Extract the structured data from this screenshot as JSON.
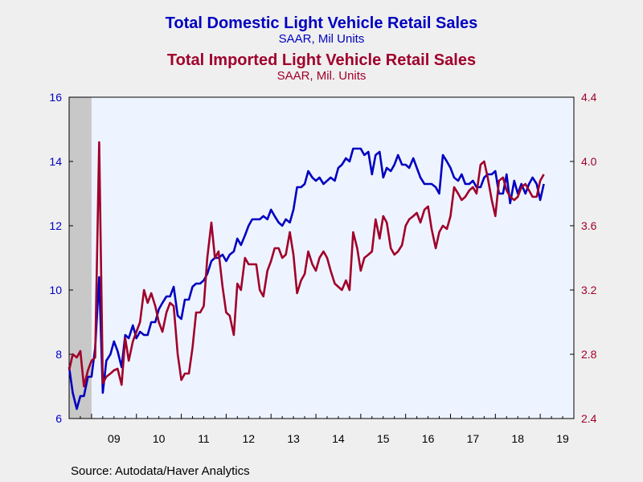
{
  "colors": {
    "domestic": "#0000c0",
    "imported": "#a0002a",
    "plot_bg": "#eef4ff",
    "recession": "#c8c8c8"
  },
  "header": {
    "title_domestic": "Total Domestic Light Vehicle Retail Sales",
    "subtitle_domestic": "SAAR, Mil Units",
    "title_imported": "Total Imported Light Vehicle Retail Sales",
    "subtitle_imported": "SAAR, Mil. Units"
  },
  "source": "Source:  Autodata/Haver Analytics",
  "chart_data": {
    "type": "line",
    "title": "Total Domestic Light Vehicle Retail Sales / Total Imported Light Vehicle Retail Sales",
    "x_unit": "year (decimal)",
    "xlim": [
      2008.5,
      2019.75
    ],
    "x_tick_labels": [
      "09",
      "10",
      "11",
      "12",
      "13",
      "14",
      "15",
      "16",
      "17",
      "18",
      "19"
    ],
    "recession_band": [
      2008.5,
      2009.0
    ],
    "y_left": {
      "lim": [
        6,
        16
      ],
      "ticks": [
        "6",
        "8",
        "10",
        "12",
        "14",
        "16"
      ]
    },
    "y_right": {
      "lim": [
        2.4,
        4.4
      ],
      "ticks": [
        "2.4",
        "2.8",
        "3.2",
        "3.6",
        "4.0",
        "4.4"
      ]
    },
    "grid": false,
    "series": [
      {
        "name": "Total Domestic Light Vehicle Retail Sales",
        "axis": "left",
        "points": [
          [
            2008.5,
            7.6
          ],
          [
            2008.58,
            6.8
          ],
          [
            2008.67,
            6.3
          ],
          [
            2008.75,
            6.7
          ],
          [
            2008.83,
            6.7
          ],
          [
            2008.92,
            7.3
          ],
          [
            2009.0,
            7.3
          ],
          [
            2009.08,
            8.2
          ],
          [
            2009.17,
            10.4
          ],
          [
            2009.25,
            6.8
          ],
          [
            2009.33,
            7.8
          ],
          [
            2009.42,
            8.0
          ],
          [
            2009.5,
            8.4
          ],
          [
            2009.58,
            8.1
          ],
          [
            2009.67,
            7.6
          ],
          [
            2009.75,
            8.6
          ],
          [
            2009.83,
            8.5
          ],
          [
            2009.92,
            8.9
          ],
          [
            2010.0,
            8.5
          ],
          [
            2010.08,
            8.7
          ],
          [
            2010.17,
            8.6
          ],
          [
            2010.25,
            8.6
          ],
          [
            2010.33,
            9.0
          ],
          [
            2010.42,
            9.0
          ],
          [
            2010.5,
            9.4
          ],
          [
            2010.58,
            9.6
          ],
          [
            2010.67,
            9.8
          ],
          [
            2010.75,
            9.8
          ],
          [
            2010.83,
            10.1
          ],
          [
            2010.92,
            9.2
          ],
          [
            2011.0,
            9.1
          ],
          [
            2011.08,
            9.7
          ],
          [
            2011.17,
            9.7
          ],
          [
            2011.25,
            10.1
          ],
          [
            2011.33,
            10.2
          ],
          [
            2011.42,
            10.2
          ],
          [
            2011.5,
            10.3
          ],
          [
            2011.58,
            10.5
          ],
          [
            2011.67,
            10.9
          ],
          [
            2011.75,
            11.0
          ],
          [
            2011.83,
            11.0
          ],
          [
            2011.92,
            11.1
          ],
          [
            2012.0,
            10.9
          ],
          [
            2012.08,
            11.1
          ],
          [
            2012.17,
            11.2
          ],
          [
            2012.25,
            11.6
          ],
          [
            2012.33,
            11.4
          ],
          [
            2012.42,
            11.7
          ],
          [
            2012.5,
            12.0
          ],
          [
            2012.58,
            12.2
          ],
          [
            2012.67,
            12.2
          ],
          [
            2012.75,
            12.2
          ],
          [
            2012.83,
            12.3
          ],
          [
            2012.92,
            12.2
          ],
          [
            2013.0,
            12.5
          ],
          [
            2013.08,
            12.3
          ],
          [
            2013.17,
            12.1
          ],
          [
            2013.25,
            12.0
          ],
          [
            2013.33,
            12.2
          ],
          [
            2013.42,
            12.1
          ],
          [
            2013.5,
            12.5
          ],
          [
            2013.58,
            13.2
          ],
          [
            2013.67,
            13.2
          ],
          [
            2013.75,
            13.3
          ],
          [
            2013.83,
            13.7
          ],
          [
            2013.92,
            13.5
          ],
          [
            2014.0,
            13.4
          ],
          [
            2014.08,
            13.5
          ],
          [
            2014.17,
            13.3
          ],
          [
            2014.25,
            13.4
          ],
          [
            2014.33,
            13.5
          ],
          [
            2014.42,
            13.4
          ],
          [
            2014.5,
            13.8
          ],
          [
            2014.58,
            13.9
          ],
          [
            2014.67,
            14.1
          ],
          [
            2014.75,
            14.0
          ],
          [
            2014.83,
            14.4
          ],
          [
            2014.92,
            14.4
          ],
          [
            2015.0,
            14.4
          ],
          [
            2015.08,
            14.2
          ],
          [
            2015.17,
            14.3
          ],
          [
            2015.25,
            13.6
          ],
          [
            2015.33,
            14.2
          ],
          [
            2015.42,
            14.3
          ],
          [
            2015.5,
            13.5
          ],
          [
            2015.58,
            13.8
          ],
          [
            2015.67,
            13.7
          ],
          [
            2015.75,
            13.9
          ],
          [
            2015.83,
            14.2
          ],
          [
            2015.92,
            13.9
          ],
          [
            2016.0,
            13.9
          ],
          [
            2016.08,
            13.8
          ],
          [
            2016.17,
            14.1
          ],
          [
            2016.25,
            13.8
          ],
          [
            2016.33,
            13.5
          ],
          [
            2016.42,
            13.3
          ],
          [
            2016.5,
            13.3
          ],
          [
            2016.58,
            13.3
          ],
          [
            2016.67,
            13.2
          ],
          [
            2016.75,
            13.0
          ],
          [
            2016.83,
            14.2
          ],
          [
            2016.92,
            14.0
          ],
          [
            2017.0,
            13.8
          ],
          [
            2017.08,
            13.5
          ],
          [
            2017.17,
            13.4
          ],
          [
            2017.25,
            13.6
          ],
          [
            2017.33,
            13.3
          ],
          [
            2017.42,
            13.3
          ],
          [
            2017.5,
            13.4
          ],
          [
            2017.58,
            13.2
          ],
          [
            2017.67,
            13.2
          ],
          [
            2017.75,
            13.5
          ],
          [
            2017.83,
            13.6
          ],
          [
            2017.92,
            13.6
          ],
          [
            2018.0,
            13.7
          ],
          [
            2018.08,
            13.0
          ],
          [
            2018.17,
            13.0
          ],
          [
            2018.25,
            13.6
          ],
          [
            2018.33,
            12.7
          ],
          [
            2018.42,
            13.4
          ],
          [
            2018.5,
            13.0
          ],
          [
            2018.58,
            13.3
          ],
          [
            2018.67,
            13.0
          ],
          [
            2018.75,
            13.3
          ],
          [
            2018.83,
            13.5
          ],
          [
            2018.92,
            13.3
          ],
          [
            2019.0,
            12.8
          ],
          [
            2019.08,
            13.3
          ]
        ]
      },
      {
        "name": "Total Imported Light Vehicle Retail Sales",
        "axis": "right",
        "points": [
          [
            2008.5,
            2.7
          ],
          [
            2008.58,
            2.8
          ],
          [
            2008.67,
            2.78
          ],
          [
            2008.75,
            2.82
          ],
          [
            2008.83,
            2.6
          ],
          [
            2008.92,
            2.7
          ],
          [
            2009.0,
            2.76
          ],
          [
            2009.08,
            2.78
          ],
          [
            2009.17,
            4.12
          ],
          [
            2009.25,
            2.62
          ],
          [
            2009.33,
            2.66
          ],
          [
            2009.42,
            2.68
          ],
          [
            2009.5,
            2.7
          ],
          [
            2009.58,
            2.71
          ],
          [
            2009.67,
            2.61
          ],
          [
            2009.75,
            2.9
          ],
          [
            2009.83,
            2.76
          ],
          [
            2009.92,
            2.88
          ],
          [
            2010.0,
            2.94
          ],
          [
            2010.08,
            3.0
          ],
          [
            2010.17,
            3.2
          ],
          [
            2010.25,
            3.12
          ],
          [
            2010.33,
            3.18
          ],
          [
            2010.42,
            3.1
          ],
          [
            2010.5,
            3.0
          ],
          [
            2010.58,
            2.94
          ],
          [
            2010.67,
            3.06
          ],
          [
            2010.75,
            3.12
          ],
          [
            2010.83,
            3.1
          ],
          [
            2010.92,
            2.8
          ],
          [
            2011.0,
            2.64
          ],
          [
            2011.08,
            2.68
          ],
          [
            2011.17,
            2.68
          ],
          [
            2011.25,
            2.84
          ],
          [
            2011.33,
            3.06
          ],
          [
            2011.42,
            3.06
          ],
          [
            2011.5,
            3.1
          ],
          [
            2011.58,
            3.4
          ],
          [
            2011.67,
            3.62
          ],
          [
            2011.75,
            3.4
          ],
          [
            2011.83,
            3.44
          ],
          [
            2011.92,
            3.22
          ],
          [
            2012.0,
            3.06
          ],
          [
            2012.08,
            3.04
          ],
          [
            2012.17,
            2.92
          ],
          [
            2012.25,
            3.24
          ],
          [
            2012.33,
            3.2
          ],
          [
            2012.42,
            3.4
          ],
          [
            2012.5,
            3.36
          ],
          [
            2012.58,
            3.36
          ],
          [
            2012.67,
            3.36
          ],
          [
            2012.75,
            3.2
          ],
          [
            2012.83,
            3.16
          ],
          [
            2012.92,
            3.32
          ],
          [
            2013.0,
            3.38
          ],
          [
            2013.08,
            3.46
          ],
          [
            2013.17,
            3.46
          ],
          [
            2013.25,
            3.4
          ],
          [
            2013.33,
            3.42
          ],
          [
            2013.42,
            3.56
          ],
          [
            2013.5,
            3.42
          ],
          [
            2013.58,
            3.18
          ],
          [
            2013.67,
            3.26
          ],
          [
            2013.75,
            3.3
          ],
          [
            2013.83,
            3.44
          ],
          [
            2013.92,
            3.36
          ],
          [
            2014.0,
            3.32
          ],
          [
            2014.08,
            3.4
          ],
          [
            2014.17,
            3.44
          ],
          [
            2014.25,
            3.4
          ],
          [
            2014.33,
            3.32
          ],
          [
            2014.42,
            3.24
          ],
          [
            2014.5,
            3.22
          ],
          [
            2014.58,
            3.2
          ],
          [
            2014.67,
            3.26
          ],
          [
            2014.75,
            3.2
          ],
          [
            2014.83,
            3.56
          ],
          [
            2014.92,
            3.46
          ],
          [
            2015.0,
            3.32
          ],
          [
            2015.08,
            3.4
          ],
          [
            2015.17,
            3.42
          ],
          [
            2015.25,
            3.44
          ],
          [
            2015.33,
            3.64
          ],
          [
            2015.42,
            3.52
          ],
          [
            2015.5,
            3.66
          ],
          [
            2015.58,
            3.62
          ],
          [
            2015.67,
            3.46
          ],
          [
            2015.75,
            3.42
          ],
          [
            2015.83,
            3.44
          ],
          [
            2015.92,
            3.48
          ],
          [
            2016.0,
            3.6
          ],
          [
            2016.08,
            3.64
          ],
          [
            2016.17,
            3.66
          ],
          [
            2016.25,
            3.68
          ],
          [
            2016.33,
            3.62
          ],
          [
            2016.42,
            3.7
          ],
          [
            2016.5,
            3.72
          ],
          [
            2016.58,
            3.58
          ],
          [
            2016.67,
            3.46
          ],
          [
            2016.75,
            3.56
          ],
          [
            2016.83,
            3.6
          ],
          [
            2016.92,
            3.58
          ],
          [
            2017.0,
            3.66
          ],
          [
            2017.08,
            3.84
          ],
          [
            2017.17,
            3.8
          ],
          [
            2017.25,
            3.76
          ],
          [
            2017.33,
            3.78
          ],
          [
            2017.42,
            3.82
          ],
          [
            2017.5,
            3.84
          ],
          [
            2017.58,
            3.8
          ],
          [
            2017.67,
            3.98
          ],
          [
            2017.75,
            4.0
          ],
          [
            2017.83,
            3.9
          ],
          [
            2017.92,
            3.76
          ],
          [
            2018.0,
            3.66
          ],
          [
            2018.08,
            3.88
          ],
          [
            2018.17,
            3.9
          ],
          [
            2018.25,
            3.82
          ],
          [
            2018.33,
            3.78
          ],
          [
            2018.42,
            3.76
          ],
          [
            2018.5,
            3.78
          ],
          [
            2018.58,
            3.84
          ],
          [
            2018.67,
            3.86
          ],
          [
            2018.75,
            3.82
          ],
          [
            2018.83,
            3.78
          ],
          [
            2018.92,
            3.78
          ],
          [
            2019.0,
            3.88
          ],
          [
            2019.08,
            3.92
          ]
        ]
      }
    ]
  }
}
